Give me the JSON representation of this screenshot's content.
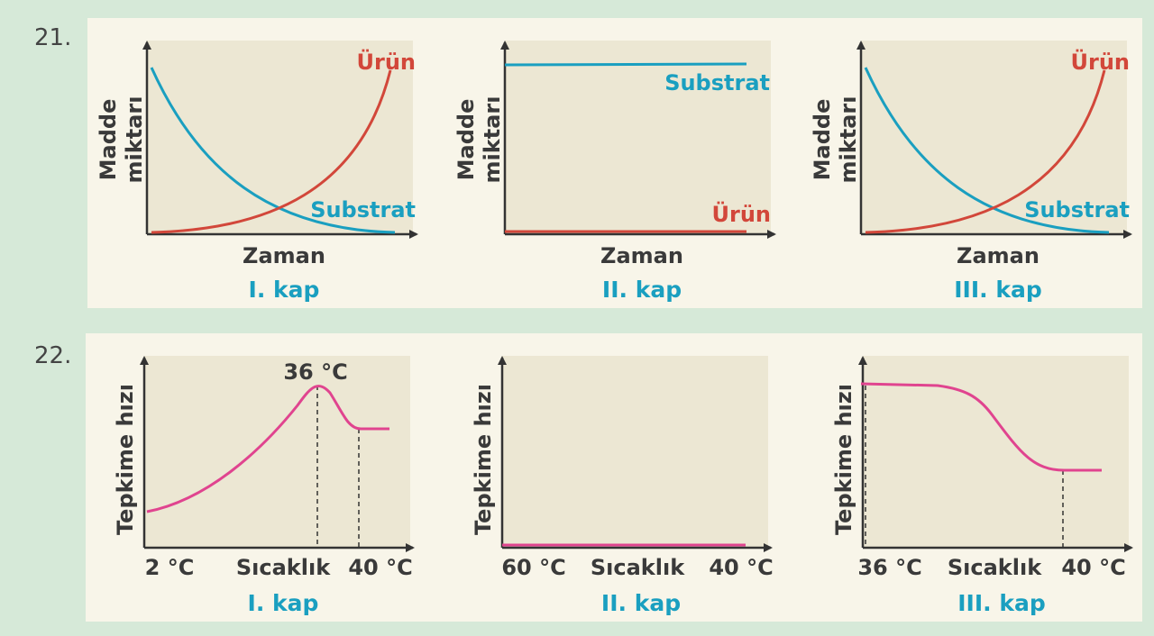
{
  "questions": [
    {
      "number": "21.",
      "panels": [
        {
          "y_label": [
            "Madde",
            "miktarı"
          ],
          "x_label": "Zaman",
          "caption": "I. kap",
          "product_label": "Ürün",
          "substrate_label": "Substrat"
        },
        {
          "y_label": [
            "Madde",
            "miktarı"
          ],
          "x_label": "Zaman",
          "caption": "II. kap",
          "product_label": "Ürün",
          "substrate_label": "Substrat"
        },
        {
          "y_label": [
            "Madde",
            "miktarı"
          ],
          "x_label": "Zaman",
          "caption": "III. kap",
          "product_label": "Ürün",
          "substrate_label": "Substrat"
        }
      ]
    },
    {
      "number": "22.",
      "panels": [
        {
          "y_label": "Tepkime hızı",
          "x_start": "2 °C",
          "x_label": "Sıcaklık",
          "x_end": "40 °C",
          "peak_label": "36 °C",
          "caption": "I. kap"
        },
        {
          "y_label": "Tepkime hızı",
          "x_start": "60 °C",
          "x_label": "Sıcaklık",
          "x_end": "40 °C",
          "caption": "II. kap"
        },
        {
          "y_label": "Tepkime hızı",
          "x_start": "36 °C",
          "x_label": "Sıcaklık",
          "x_end": "40 °C",
          "caption": "III. kap"
        }
      ]
    }
  ]
}
